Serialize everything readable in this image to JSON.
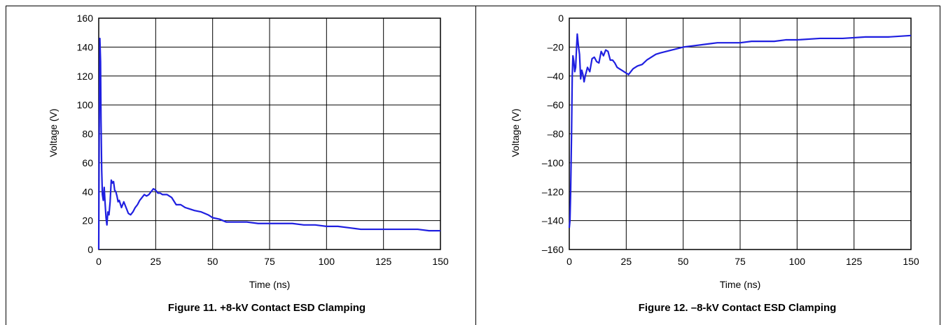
{
  "chart_data": [
    {
      "type": "line",
      "caption": "Figure 11. +8-kV Contact ESD Clamping",
      "xlabel": "Time (ns)",
      "ylabel": "Voltage (V)",
      "xlim": [
        0,
        150
      ],
      "ylim": [
        0,
        160
      ],
      "xticks": [
        0,
        25,
        50,
        75,
        100,
        125,
        150
      ],
      "yticks": [
        0,
        20,
        40,
        60,
        80,
        100,
        120,
        140,
        160
      ],
      "grid": true,
      "color": "#1f1fe0",
      "series": [
        {
          "x": [
            0,
            0.2,
            0.5,
            0.8,
            1.0,
            1.3,
            1.6,
            2.0,
            2.4,
            2.8,
            3.2,
            3.6,
            4.0,
            4.5,
            5.0,
            5.5,
            6.0,
            6.5,
            7.0,
            7.5,
            8.0,
            8.5,
            9.0,
            10,
            11,
            12,
            13,
            14,
            15,
            16,
            17,
            18,
            19,
            20,
            21,
            22,
            23,
            24,
            25,
            26,
            27,
            28,
            30,
            32,
            34,
            36,
            38,
            40,
            42,
            45,
            48,
            50,
            53,
            56,
            60,
            65,
            70,
            75,
            80,
            85,
            90,
            95,
            100,
            105,
            110,
            115,
            120,
            125,
            130,
            135,
            140,
            145,
            150
          ],
          "y": [
            0,
            80,
            146,
            130,
            90,
            55,
            38,
            34,
            43,
            32,
            22,
            17,
            26,
            24,
            33,
            48,
            46,
            47,
            41,
            40,
            37,
            33,
            34,
            29,
            33,
            29,
            25,
            24,
            26,
            29,
            31,
            34,
            36,
            38,
            37,
            38,
            40,
            42,
            41,
            39,
            39,
            38,
            38,
            36,
            31,
            31,
            29,
            28,
            27,
            26,
            24,
            22,
            21,
            19,
            19,
            19,
            18,
            18,
            18,
            18,
            17,
            17,
            16,
            16,
            15,
            14,
            14,
            14,
            14,
            14,
            14,
            13,
            13
          ]
        }
      ]
    },
    {
      "type": "line",
      "caption": "Figure 12. –8-kV Contact ESD Clamping",
      "xlabel": "Time (ns)",
      "ylabel": "Voltage (V)",
      "xlim": [
        0,
        150
      ],
      "ylim": [
        -160,
        0
      ],
      "xticks": [
        0,
        25,
        50,
        75,
        100,
        125,
        150
      ],
      "yticks": [
        -160,
        -140,
        -120,
        -100,
        -80,
        -60,
        -40,
        -20,
        0
      ],
      "ytick_labels": [
        "–160",
        "–140",
        "–120",
        "–100",
        "–80",
        "–60",
        "–40",
        "–20",
        "0"
      ],
      "grid": true,
      "color": "#1f1fe0",
      "series": [
        {
          "x": [
            0,
            0.3,
            0.6,
            1.0,
            1.3,
            1.6,
            2.0,
            2.4,
            2.8,
            3.2,
            3.5,
            4.0,
            4.5,
            5.0,
            5.5,
            6.0,
            6.5,
            7.0,
            8,
            9,
            10,
            11,
            12,
            13,
            14,
            15,
            16,
            17,
            18,
            19,
            20,
            21,
            22,
            23,
            24,
            25,
            26,
            27,
            28,
            29,
            30,
            32,
            34,
            36,
            38,
            40,
            45,
            50,
            55,
            60,
            65,
            70,
            75,
            80,
            85,
            90,
            95,
            100,
            110,
            120,
            130,
            140,
            150
          ],
          "y": [
            -145,
            -140,
            -120,
            -80,
            -40,
            -26,
            -30,
            -37,
            -34,
            -20,
            -11,
            -19,
            -25,
            -42,
            -36,
            -39,
            -44,
            -40,
            -34,
            -37,
            -28,
            -27,
            -30,
            -31,
            -23,
            -26,
            -22,
            -23,
            -29,
            -29,
            -31,
            -34,
            -35,
            -36,
            -37,
            -38,
            -39,
            -37,
            -35,
            -34,
            -33,
            -32,
            -29,
            -27,
            -25,
            -24,
            -22,
            -20,
            -19,
            -18,
            -17,
            -17,
            -17,
            -16,
            -16,
            -16,
            -15,
            -15,
            -14,
            -14,
            -13,
            -13,
            -12
          ]
        }
      ]
    }
  ]
}
